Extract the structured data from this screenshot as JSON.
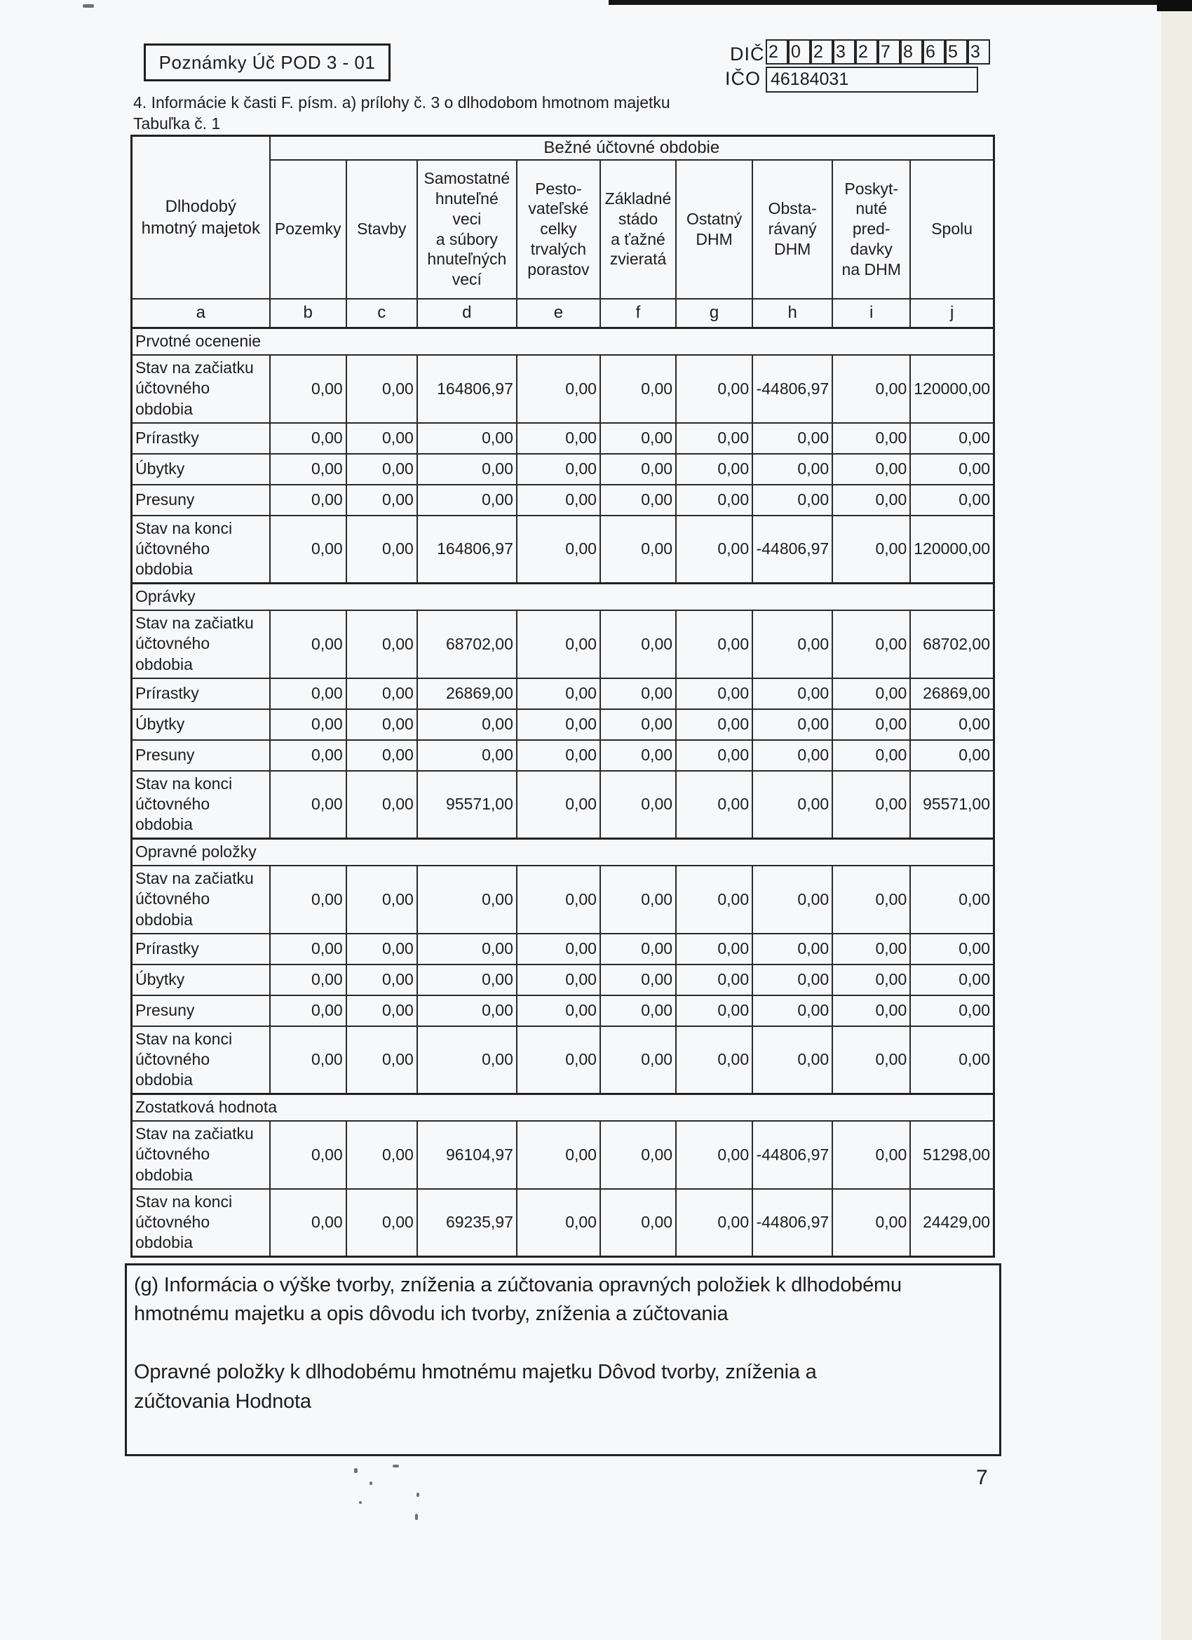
{
  "form": {
    "badge": "Poznámky Úč POD 3 - 01",
    "dic_label": "DIČ",
    "dic_digits": [
      "2",
      "0",
      "2",
      "3",
      "2",
      "7",
      "8",
      "6",
      "5",
      "3"
    ],
    "ico_label": "IČO",
    "ico_value": "46184031",
    "title": "4. Informácie k časti F. písm. a) prílohy č. 3 o dlhodobom hmotnom majetku",
    "subtitle": "Tabuľka č. 1",
    "page_number": "7"
  },
  "table": {
    "corner_header": "Dlhodobý\nhmotný majetok",
    "period_header": "Bežné účtovné obdobie",
    "column_headers": [
      "Pozemky",
      "Stavby",
      "Samostatné\nhnuteľné\nveci\na súbory\nhnuteľných\nvecí",
      "Pesto-\nvateľské\ncelky\ntrvalých\nporastov",
      "Základné\nstádo\na ťažné\nzvieratá",
      "Ostatný\nDHM",
      "Obsta-\nrávaný\nDHM",
      "Poskyt-\nnuté\npred-\ndavky\nna DHM",
      "Spolu"
    ],
    "column_letters": [
      "a",
      "b",
      "c",
      "d",
      "e",
      "f",
      "g",
      "h",
      "i",
      "j"
    ],
    "sections": [
      {
        "title": "Prvotné ocenenie",
        "rows": [
          {
            "label": "Stav na začiatku\núčtovného\nobdobia",
            "size": "tall",
            "values": [
              "0,00",
              "0,00",
              "164806,97",
              "0,00",
              "0,00",
              "0,00",
              "-44806,97",
              "0,00",
              "120000,00"
            ]
          },
          {
            "label": "Prírastky",
            "size": "short",
            "values": [
              "0,00",
              "0,00",
              "0,00",
              "0,00",
              "0,00",
              "0,00",
              "0,00",
              "0,00",
              "0,00"
            ]
          },
          {
            "label": "Úbytky",
            "size": "short",
            "values": [
              "0,00",
              "0,00",
              "0,00",
              "0,00",
              "0,00",
              "0,00",
              "0,00",
              "0,00",
              "0,00"
            ]
          },
          {
            "label": "Presuny",
            "size": "short",
            "values": [
              "0,00",
              "0,00",
              "0,00",
              "0,00",
              "0,00",
              "0,00",
              "0,00",
              "0,00",
              "0,00"
            ]
          },
          {
            "label": "Stav na konci\núčtovného\nobdobia",
            "size": "tall",
            "values": [
              "0,00",
              "0,00",
              "164806,97",
              "0,00",
              "0,00",
              "0,00",
              "-44806,97",
              "0,00",
              "120000,00"
            ]
          }
        ]
      },
      {
        "title": "Oprávky",
        "rows": [
          {
            "label": "Stav na začiatku\núčtovného\nobdobia",
            "size": "tall",
            "values": [
              "0,00",
              "0,00",
              "68702,00",
              "0,00",
              "0,00",
              "0,00",
              "0,00",
              "0,00",
              "68702,00"
            ]
          },
          {
            "label": "Prírastky",
            "size": "short",
            "values": [
              "0,00",
              "0,00",
              "26869,00",
              "0,00",
              "0,00",
              "0,00",
              "0,00",
              "0,00",
              "26869,00"
            ]
          },
          {
            "label": "Úbytky",
            "size": "short",
            "values": [
              "0,00",
              "0,00",
              "0,00",
              "0,00",
              "0,00",
              "0,00",
              "0,00",
              "0,00",
              "0,00"
            ]
          },
          {
            "label": "Presuny",
            "size": "short",
            "values": [
              "0,00",
              "0,00",
              "0,00",
              "0,00",
              "0,00",
              "0,00",
              "0,00",
              "0,00",
              "0,00"
            ]
          },
          {
            "label": "Stav na konci\núčtovného\nobdobia",
            "size": "tall",
            "values": [
              "0,00",
              "0,00",
              "95571,00",
              "0,00",
              "0,00",
              "0,00",
              "0,00",
              "0,00",
              "95571,00"
            ]
          }
        ]
      },
      {
        "title": "Opravné položky",
        "rows": [
          {
            "label": "Stav na začiatku\núčtovného\nobdobia",
            "size": "tall",
            "values": [
              "0,00",
              "0,00",
              "0,00",
              "0,00",
              "0,00",
              "0,00",
              "0,00",
              "0,00",
              "0,00"
            ]
          },
          {
            "label": "Prírastky",
            "size": "short",
            "values": [
              "0,00",
              "0,00",
              "0,00",
              "0,00",
              "0,00",
              "0,00",
              "0,00",
              "0,00",
              "0,00"
            ]
          },
          {
            "label": "Úbytky",
            "size": "short",
            "values": [
              "0,00",
              "0,00",
              "0,00",
              "0,00",
              "0,00",
              "0,00",
              "0,00",
              "0,00",
              "0,00"
            ]
          },
          {
            "label": "Presuny",
            "size": "short",
            "values": [
              "0,00",
              "0,00",
              "0,00",
              "0,00",
              "0,00",
              "0,00",
              "0,00",
              "0,00",
              "0,00"
            ]
          },
          {
            "label": "Stav na konci\núčtovného\nobdobia",
            "size": "tall",
            "values": [
              "0,00",
              "0,00",
              "0,00",
              "0,00",
              "0,00",
              "0,00",
              "0,00",
              "0,00",
              "0,00"
            ]
          }
        ]
      },
      {
        "title": "Zostatková hodnota",
        "rows": [
          {
            "label": "Stav na začiatku\núčtovného\nobdobia",
            "size": "tall",
            "values": [
              "0,00",
              "0,00",
              "96104,97",
              "0,00",
              "0,00",
              "0,00",
              "-44806,97",
              "0,00",
              "51298,00"
            ]
          },
          {
            "label": "Stav na konci\núčtovného\nobdobia",
            "size": "tall",
            "values": [
              "0,00",
              "0,00",
              "69235,97",
              "0,00",
              "0,00",
              "0,00",
              "-44806,97",
              "0,00",
              "24429,00"
            ]
          }
        ]
      }
    ]
  },
  "notes": {
    "paragraph1": "(g) Informácia o výške tvorby, zníženia a zúčtovania opravných položiek k dlhodobému\nhmotnému majetku a opis dôvodu ich tvorby, zníženia a zúčtovania",
    "paragraph2": "Opravné položky k dlhodobému hmotnému majetku   Dôvod tvorby, zníženia a\nzúčtovania   Hodnota"
  }
}
